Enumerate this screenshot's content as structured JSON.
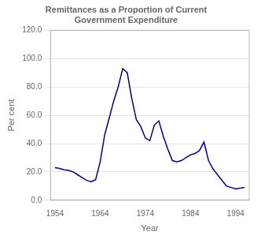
{
  "chart_data": {
    "type": "line",
    "title": "Remittances as a Proportion of Current\nGovernment Expenditure",
    "xlabel": "Year",
    "ylabel": "Per cent",
    "x": [
      1954,
      1955,
      1956,
      1957,
      1958,
      1959,
      1960,
      1961,
      1962,
      1963,
      1964,
      1965,
      1966,
      1967,
      1968,
      1969,
      1970,
      1971,
      1972,
      1973,
      1974,
      1975,
      1976,
      1977,
      1978,
      1979,
      1980,
      1981,
      1982,
      1983,
      1984,
      1985,
      1986,
      1987,
      1988,
      1989,
      1990,
      1991,
      1992,
      1993,
      1994,
      1995,
      1996
    ],
    "values": [
      23.0,
      22.5,
      21.5,
      21.0,
      20.0,
      18.0,
      16.0,
      14.0,
      13.0,
      14.5,
      27.0,
      46.0,
      58.0,
      70.0,
      80.0,
      93.0,
      90.0,
      72.0,
      57.0,
      52.0,
      44.0,
      42.0,
      53.0,
      56.0,
      45.0,
      36.0,
      28.0,
      27.0,
      28.0,
      30.0,
      32.0,
      33.0,
      35.0,
      41.0,
      28.0,
      22.0,
      18.0,
      14.0,
      10.0,
      9.0,
      8.0,
      8.5,
      9.0
    ],
    "color": "#00008B",
    "xlim": [
      1953,
      1997
    ],
    "xticks": [
      1954,
      1964,
      1974,
      1984,
      1994
    ],
    "ylim": [
      0,
      120
    ],
    "yticks": [
      {
        "value": 0,
        "label": "0.0"
      },
      {
        "value": 20,
        "label": "20.0"
      },
      {
        "value": 40,
        "label": "40.0"
      },
      {
        "value": 60,
        "label": "60.0"
      },
      {
        "value": 80,
        "label": "80.0"
      },
      {
        "value": 100,
        "label": "100.0"
      },
      {
        "value": 120,
        "label": "120.0"
      }
    ],
    "grid": "y"
  }
}
